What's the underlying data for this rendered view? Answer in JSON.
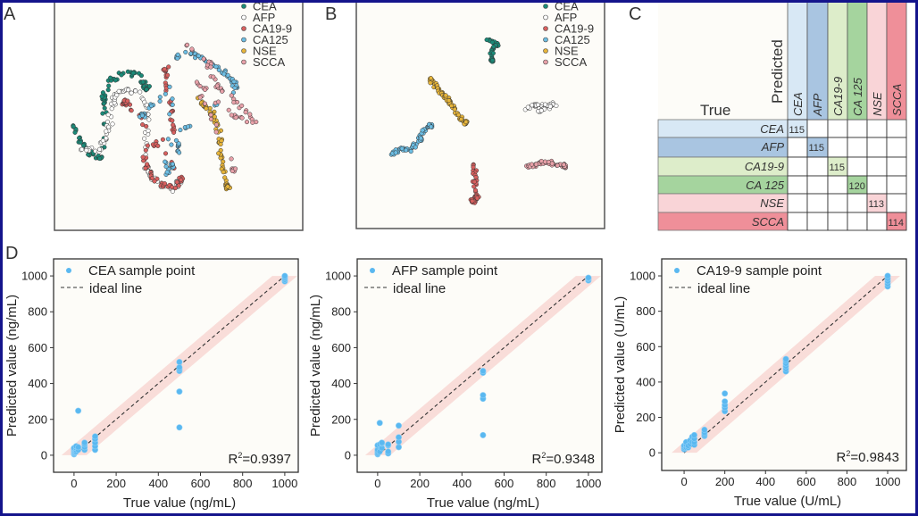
{
  "panel_labels": {
    "a": "A",
    "b": "B",
    "c": "C",
    "d": "D"
  },
  "colors": {
    "CEA": "#1b8a78",
    "AFP": "#ffffff",
    "CA19-9": "#d8605f",
    "CA125": "#6cbde3",
    "NSE": "#e6b43a",
    "SCCA": "#e8a1a9",
    "sample_point": "#5ab8f0",
    "band": "#f4b8b4",
    "plot_bg": "#fdfcf8",
    "frame": "#14148c"
  },
  "chart_data": [
    {
      "type": "scatter",
      "panel": "A",
      "legend": [
        "CEA",
        "AFP",
        "CA19-9",
        "CA125",
        "NSE",
        "SCCA"
      ],
      "legend_placement": "top-right",
      "xlim": [
        0,
        100
      ],
      "ylim": [
        0,
        100
      ],
      "clusters": {
        "CEA": [
          [
            7.6,
            45
          ],
          [
            10.4,
            38
          ],
          [
            14,
            33
          ],
          [
            19.4,
            31
          ],
          [
            20.5,
            51.6
          ],
          [
            19.4,
            57.4
          ],
          [
            23,
            65
          ],
          [
            28.4,
            68
          ],
          [
            33.8,
            67
          ],
          [
            37.4,
            61
          ]
        ],
        "AFP": [
          [
            10.4,
            35
          ],
          [
            17.6,
            34
          ],
          [
            21,
            42
          ],
          [
            23,
            49.6
          ],
          [
            24,
            57.4
          ],
          [
            28.4,
            61
          ],
          [
            33.8,
            59
          ],
          [
            38.5,
            49.6
          ],
          [
            35.6,
            30
          ],
          [
            39.2,
            22.5
          ],
          [
            46.4,
            16.7
          ],
          [
            50,
            20.5
          ]
        ],
        "CA19-9": [
          [
            44.6,
            71
          ],
          [
            44.6,
            65
          ],
          [
            47,
            51.6
          ],
          [
            48,
            42
          ],
          [
            35.6,
            34
          ],
          [
            37.4,
            26
          ],
          [
            41,
            20.5
          ],
          [
            48,
            18.6
          ],
          [
            51.8,
            22.5
          ],
          [
            32,
            51.6
          ],
          [
            28.4,
            55.4
          ]
        ],
        "CA125": [
          [
            48,
            74.8
          ],
          [
            55.4,
            76.7
          ],
          [
            60.8,
            73.6
          ],
          [
            66,
            70
          ],
          [
            71,
            65
          ],
          [
            73.4,
            61
          ],
          [
            50,
            42
          ],
          [
            50,
            32
          ],
          [
            44.6,
            22.5
          ],
          [
            48,
            63
          ],
          [
            35.6,
            49.6
          ]
        ],
        "NSE": [
          [
            57,
            59
          ],
          [
            60.8,
            53.5
          ],
          [
            64.4,
            49.6
          ],
          [
            66,
            42
          ],
          [
            67,
            34
          ],
          [
            68,
            26
          ],
          [
            69.8,
            18.6
          ]
        ],
        "SCCA": [
          [
            53.6,
            80.6
          ],
          [
            62.6,
            71
          ],
          [
            66,
            61
          ],
          [
            73.4,
            55.4
          ],
          [
            80.6,
            46.5
          ],
          [
            71.6,
            49.6
          ],
          [
            56.5,
            65
          ],
          [
            72.3,
            26
          ]
        ]
      }
    },
    {
      "type": "scatter",
      "panel": "B",
      "legend": [
        "CEA",
        "AFP",
        "CA19-9",
        "CA125",
        "NSE",
        "SCCA"
      ],
      "legend_placement": "top-right",
      "xlim": [
        0,
        100
      ],
      "ylim": [
        0,
        100
      ],
      "clusters": {
        "CEA": [
          [
            53,
            82
          ],
          [
            57,
            80
          ],
          [
            55,
            78
          ],
          [
            54.5,
            73
          ]
        ],
        "AFP": [
          [
            68,
            52
          ],
          [
            72,
            54
          ],
          [
            76,
            53
          ],
          [
            80,
            54
          ],
          [
            74,
            51
          ]
        ],
        "CA19-9": [
          [
            47,
            28
          ],
          [
            48,
            23
          ],
          [
            47.5,
            18
          ],
          [
            48.5,
            14
          ],
          [
            47,
            12
          ]
        ],
        "CA125": [
          [
            14,
            32
          ],
          [
            18,
            35
          ],
          [
            22,
            34
          ],
          [
            25,
            38
          ],
          [
            27,
            42
          ],
          [
            30,
            45
          ]
        ],
        "NSE": [
          [
            29,
            66
          ],
          [
            31,
            63
          ],
          [
            33,
            60
          ],
          [
            35,
            58
          ],
          [
            37,
            56
          ],
          [
            38,
            54
          ],
          [
            42,
            48
          ],
          [
            44,
            46
          ]
        ],
        "SCCA": [
          [
            68,
            27
          ],
          [
            72,
            28
          ],
          [
            76,
            29
          ],
          [
            80,
            28
          ],
          [
            84,
            27
          ]
        ]
      }
    },
    {
      "type": "table",
      "panel": "C",
      "row_title": "True",
      "column_title": "Predicted",
      "labels": [
        "CEA",
        "AFP",
        "CA19-9",
        "CA 125",
        "NSE",
        "SCCA"
      ],
      "label_colors": [
        "#d8e8f5",
        "#a9c5e1",
        "#ddedca",
        "#a5d49e",
        "#f9d4d7",
        "#ef8f99"
      ],
      "matrix": [
        [
          115,
          null,
          null,
          null,
          null,
          null
        ],
        [
          null,
          115,
          null,
          null,
          null,
          null
        ],
        [
          null,
          null,
          115,
          null,
          null,
          null
        ],
        [
          null,
          null,
          null,
          120,
          null,
          null
        ],
        [
          null,
          null,
          null,
          null,
          113,
          null
        ],
        [
          null,
          null,
          null,
          null,
          null,
          114
        ]
      ]
    },
    {
      "type": "scatter",
      "panel": "D1",
      "legend": [
        "CEA sample point",
        "ideal line"
      ],
      "legend_placement": "top-left",
      "xlabel": "True value (ng/mL)",
      "ylabel": "Predicted value (ng/mL)",
      "xlim": [
        -97,
        1064
      ],
      "ylim": [
        -95,
        1095
      ],
      "xticks": [
        0,
        200,
        400,
        600,
        800,
        1000
      ],
      "yticks": [
        0,
        200,
        400,
        600,
        800,
        1000
      ],
      "annotation": {
        "prefix": "R",
        "sup": "2",
        "value": "=0.9397"
      },
      "points": {
        "0": [
          5,
          10,
          15,
          20,
          25,
          30,
          35,
          40
        ],
        "10": [
          20,
          30,
          40,
          50
        ],
        "20": [
          248,
          30,
          45
        ],
        "50": [
          30,
          45,
          60,
          70
        ],
        "100": [
          30,
          50,
          70,
          90,
          105
        ],
        "500": [
          155,
          355,
          470,
          480,
          490,
          520
        ],
        "1000": [
          970,
          980,
          990,
          1000
        ]
      }
    },
    {
      "type": "scatter",
      "panel": "D2",
      "legend": [
        "AFP sample point",
        "ideal line"
      ],
      "legend_placement": "top-left",
      "xlabel": "True value (ng/mL)",
      "ylabel": "Predicted value (ng/mL)",
      "xlim": [
        -97,
        1064
      ],
      "ylim": [
        -95,
        1095
      ],
      "xticks": [
        0,
        200,
        400,
        600,
        800,
        1000
      ],
      "yticks": [
        0,
        200,
        400,
        600,
        800,
        1000
      ],
      "annotation": {
        "prefix": "R",
        "sup": "2",
        "value": "=0.9348"
      },
      "points": {
        "0": [
          5,
          10,
          20,
          30,
          55
        ],
        "10": [
          180,
          20,
          60
        ],
        "20": [
          40,
          65,
          70
        ],
        "50": [
          10,
          20,
          55,
          60
        ],
        "100": [
          45,
          75,
          100,
          165
        ],
        "500": [
          112,
          315,
          335,
          460,
          470
        ],
        "1000": [
          975,
          985,
          990
        ]
      }
    },
    {
      "type": "scatter",
      "panel": "D3",
      "legend": [
        "CA19-9 sample point",
        "ideal line"
      ],
      "legend_placement": "top-left",
      "xlabel": "True value (U/mL)",
      "ylabel": "Predicted value (U/mL)",
      "xlim": [
        -110,
        1092
      ],
      "ylim": [
        -100,
        1096
      ],
      "xticks": [
        0,
        200,
        400,
        600,
        800,
        1000
      ],
      "yticks": [
        0,
        200,
        400,
        600,
        800,
        1000
      ],
      "annotation": {
        "prefix": "R",
        "sup": "2",
        "value": "=0.9843"
      },
      "points": {
        "0": [
          20,
          30,
          40
        ],
        "10": [
          30,
          45,
          60
        ],
        "20": [
          30,
          40
        ],
        "30": [
          50,
          70
        ],
        "40": [
          60,
          90
        ],
        "50": [
          45,
          60,
          80,
          100
        ],
        "100": [
          95,
          105,
          115,
          130
        ],
        "200": [
          235,
          255,
          270,
          290,
          335
        ],
        "500": [
          460,
          475,
          490,
          505,
          520,
          530
        ],
        "1000": [
          940,
          955,
          970,
          985,
          1000
        ]
      }
    }
  ]
}
